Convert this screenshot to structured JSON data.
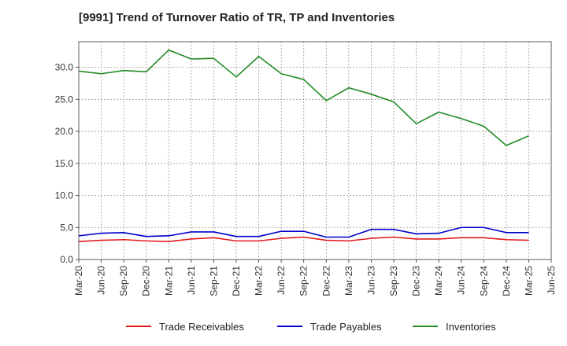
{
  "chart_data": {
    "type": "line",
    "title": "[9991]  Trend of Turnover Ratio of TR, TP and Inventories",
    "xlabel": "",
    "ylabel": "",
    "x": [
      "Mar-20",
      "Jun-20",
      "Sep-20",
      "Dec-20",
      "Mar-21",
      "Jun-21",
      "Sep-21",
      "Dec-21",
      "Mar-22",
      "Jun-22",
      "Sep-22",
      "Dec-22",
      "Mar-23",
      "Jun-23",
      "Sep-23",
      "Dec-23",
      "Mar-24",
      "Jun-24",
      "Sep-24",
      "Dec-24",
      "Mar-25",
      "Jun-25"
    ],
    "ylim": [
      0,
      34
    ],
    "yticks": [
      0.0,
      5.0,
      10.0,
      15.0,
      20.0,
      25.0,
      30.0
    ],
    "ytick_labels": [
      "0.0",
      "5.0",
      "10.0",
      "15.0",
      "20.0",
      "25.0",
      "30.0"
    ],
    "grid": true,
    "legend_position": "bottom",
    "series": [
      {
        "name": "Trade Receivables",
        "color": "#e31a1c",
        "values": [
          2.8,
          3.0,
          3.1,
          2.9,
          2.8,
          3.2,
          3.4,
          2.9,
          2.9,
          3.3,
          3.5,
          3.0,
          2.9,
          3.3,
          3.5,
          3.2,
          3.2,
          3.4,
          3.4,
          3.1,
          3.0,
          null
        ]
      },
      {
        "name": "Trade Payables",
        "color": "#0000cc",
        "values": [
          3.7,
          4.1,
          4.2,
          3.6,
          3.7,
          4.3,
          4.3,
          3.6,
          3.6,
          4.4,
          4.4,
          3.5,
          3.5,
          4.7,
          4.7,
          4.0,
          4.1,
          5.0,
          5.0,
          4.2,
          4.2,
          null
        ]
      },
      {
        "name": "Inventories",
        "color": "#228b22",
        "values": [
          29.4,
          29.0,
          29.5,
          29.3,
          32.7,
          31.3,
          31.4,
          28.5,
          31.7,
          29.0,
          28.1,
          24.8,
          26.8,
          25.8,
          24.6,
          21.2,
          23.0,
          22.0,
          20.8,
          17.8,
          19.3,
          null
        ]
      }
    ]
  }
}
